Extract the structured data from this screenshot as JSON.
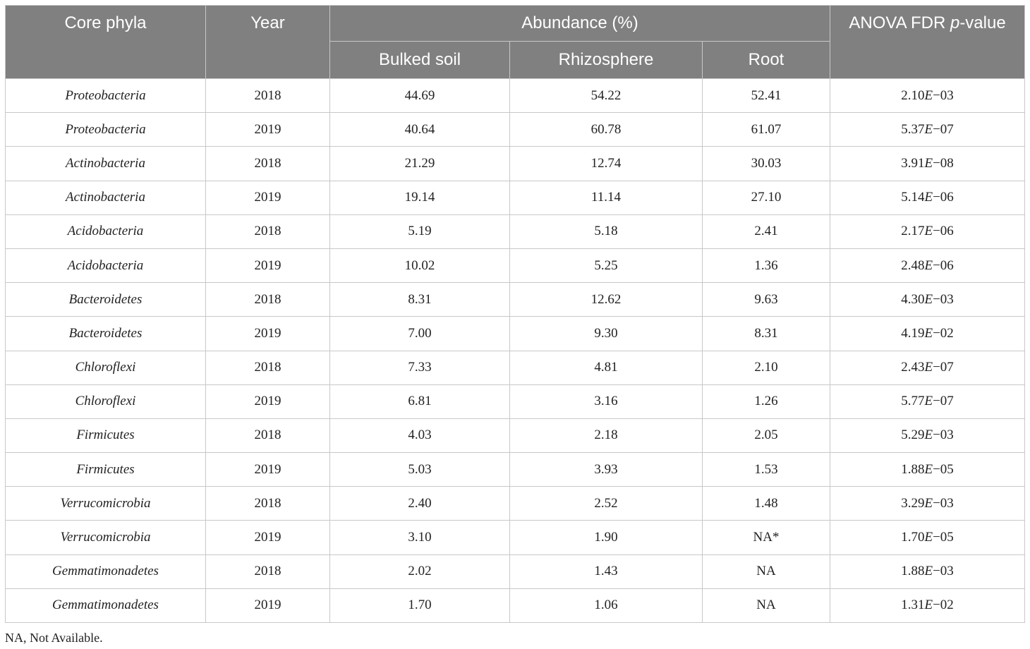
{
  "header": {
    "core_phyla": "Core phyla",
    "year": "Year",
    "abundance": "Abundance (%)",
    "bulked_soil": "Bulked soil",
    "rhizosphere": "Rhizosphere",
    "root": "Root",
    "anova_prefix": "ANOVA FDR ",
    "anova_italic": "p",
    "anova_suffix": "-value"
  },
  "rows": [
    {
      "phylum": "Proteobacteria",
      "year": "2018",
      "bulked": "44.69",
      "rhizo": "54.22",
      "root": "52.41",
      "p_mant": "2.10",
      "p_e": "E",
      "p_exp": "−03"
    },
    {
      "phylum": "Proteobacteria",
      "year": "2019",
      "bulked": "40.64",
      "rhizo": "60.78",
      "root": "61.07",
      "p_mant": "5.37",
      "p_e": "E",
      "p_exp": "−07"
    },
    {
      "phylum": "Actinobacteria",
      "year": "2018",
      "bulked": "21.29",
      "rhizo": "12.74",
      "root": "30.03",
      "p_mant": "3.91",
      "p_e": "E",
      "p_exp": "−08"
    },
    {
      "phylum": "Actinobacteria",
      "year": "2019",
      "bulked": "19.14",
      "rhizo": "11.14",
      "root": "27.10",
      "p_mant": "5.14",
      "p_e": "E",
      "p_exp": "−06"
    },
    {
      "phylum": "Acidobacteria",
      "year": "2018",
      "bulked": "5.19",
      "rhizo": "5.18",
      "root": "2.41",
      "p_mant": "2.17",
      "p_e": "E",
      "p_exp": "−06"
    },
    {
      "phylum": "Acidobacteria",
      "year": "2019",
      "bulked": "10.02",
      "rhizo": "5.25",
      "root": "1.36",
      "p_mant": "2.48",
      "p_e": "E",
      "p_exp": "−06"
    },
    {
      "phylum": "Bacteroidetes",
      "year": "2018",
      "bulked": "8.31",
      "rhizo": "12.62",
      "root": "9.63",
      "p_mant": "4.30",
      "p_e": "E",
      "p_exp": "−03"
    },
    {
      "phylum": "Bacteroidetes",
      "year": "2019",
      "bulked": "7.00",
      "rhizo": "9.30",
      "root": "8.31",
      "p_mant": "4.19",
      "p_e": "E",
      "p_exp": "−02"
    },
    {
      "phylum": "Chloroflexi",
      "year": "2018",
      "bulked": "7.33",
      "rhizo": "4.81",
      "root": "2.10",
      "p_mant": "2.43",
      "p_e": "E",
      "p_exp": "−07"
    },
    {
      "phylum": "Chloroflexi",
      "year": "2019",
      "bulked": "6.81",
      "rhizo": "3.16",
      "root": "1.26",
      "p_mant": "5.77",
      "p_e": "E",
      "p_exp": "−07"
    },
    {
      "phylum": "Firmicutes",
      "year": "2018",
      "bulked": "4.03",
      "rhizo": "2.18",
      "root": "2.05",
      "p_mant": "5.29",
      "p_e": "E",
      "p_exp": "−03"
    },
    {
      "phylum": "Firmicutes",
      "year": "2019",
      "bulked": "5.03",
      "rhizo": "3.93",
      "root": "1.53",
      "p_mant": "1.88",
      "p_e": "E",
      "p_exp": "−05"
    },
    {
      "phylum": "Verrucomicrobia",
      "year": "2018",
      "bulked": "2.40",
      "rhizo": "2.52",
      "root": "1.48",
      "p_mant": "3.29",
      "p_e": "E",
      "p_exp": "−03"
    },
    {
      "phylum": "Verrucomicrobia",
      "year": "2019",
      "bulked": "3.10",
      "rhizo": "1.90",
      "root": "NA*",
      "p_mant": "1.70",
      "p_e": "E",
      "p_exp": "−05"
    },
    {
      "phylum": "Gemmatimonadetes",
      "year": "2018",
      "bulked": "2.02",
      "rhizo": "1.43",
      "root": "NA",
      "p_mant": "1.88",
      "p_e": "E",
      "p_exp": "−03"
    },
    {
      "phylum": "Gemmatimonadetes",
      "year": "2019",
      "bulked": "1.70",
      "rhizo": "1.06",
      "root": "NA",
      "p_mant": "1.31",
      "p_e": "E",
      "p_exp": "−02"
    }
  ],
  "footnote": "NA, Not Available."
}
